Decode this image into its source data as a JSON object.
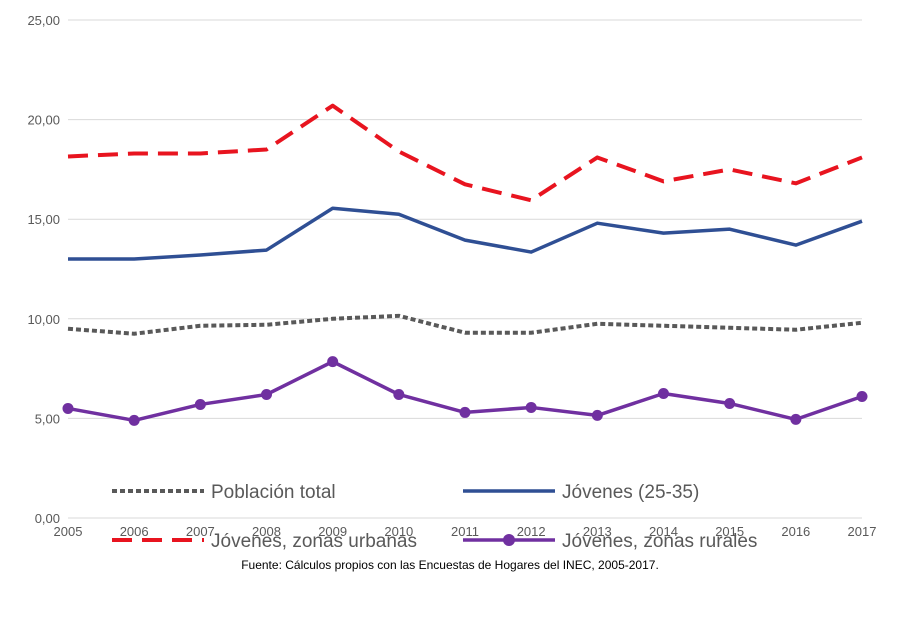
{
  "chart_data": {
    "type": "line",
    "x": [
      "2005",
      "2006",
      "2007",
      "2008",
      "2009",
      "2010",
      "2011",
      "2012",
      "2013",
      "2014",
      "2015",
      "2016",
      "2017"
    ],
    "ylim": [
      0,
      25
    ],
    "yticks": [
      "0,00",
      "5,00",
      "10,00",
      "15,00",
      "20,00",
      "25,00"
    ],
    "ytick_values": [
      0,
      5,
      10,
      15,
      20,
      25
    ],
    "grid": true,
    "legend_position": "bottom",
    "series": [
      {
        "name": "Población total",
        "color": "#595959",
        "style": "dotted",
        "values": [
          9.5,
          9.25,
          9.65,
          9.7,
          10.0,
          10.15,
          9.3,
          9.3,
          9.75,
          9.65,
          9.55,
          9.45,
          9.8
        ]
      },
      {
        "name": "Jóvenes (25-35)",
        "color": "#2f4f94",
        "style": "solid",
        "values": [
          13.0,
          13.0,
          13.2,
          13.45,
          15.55,
          15.25,
          13.95,
          13.35,
          14.8,
          14.3,
          14.5,
          13.7,
          14.9
        ]
      },
      {
        "name": "Jóvenes, zonas urbanas",
        "color": "#e8141f",
        "style": "dashed",
        "values": [
          18.15,
          18.3,
          18.3,
          18.5,
          20.7,
          18.4,
          16.75,
          15.95,
          18.1,
          16.9,
          17.5,
          16.8,
          18.1
        ]
      },
      {
        "name": "Jóvenes, zonas rurales",
        "color": "#7030a0",
        "style": "marker",
        "values": [
          5.5,
          4.9,
          5.7,
          6.2,
          7.85,
          6.2,
          5.3,
          5.55,
          5.15,
          6.25,
          5.75,
          4.95,
          6.1
        ]
      }
    ]
  },
  "source_note": "Fuente: Cálculos propios con las Encuestas de Hogares del INEC, 2005-2017."
}
